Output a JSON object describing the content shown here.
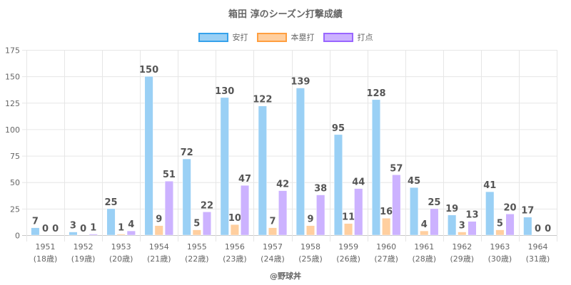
{
  "chart_data": {
    "type": "bar",
    "title": "箱田 淳のシーズン打撃成績",
    "xlabel": "",
    "ylabel": "",
    "ylim": [
      0,
      175
    ],
    "yticks": [
      0,
      25,
      50,
      75,
      100,
      125,
      150,
      175
    ],
    "grid": true,
    "legend_position": "top",
    "categories": [
      "1951",
      "1952",
      "1953",
      "1954",
      "1955",
      "1956",
      "1957",
      "1958",
      "1959",
      "1960",
      "1961",
      "1962",
      "1963",
      "1964"
    ],
    "category_sublabels": [
      "(18歳)",
      "(19歳)",
      "(20歳)",
      "(21歳)",
      "(22歳)",
      "(23歳)",
      "(24歳)",
      "(25歳)",
      "(26歳)",
      "(27歳)",
      "(28歳)",
      "(29歳)",
      "(30歳)",
      "(31歳)"
    ],
    "series": [
      {
        "name": "安打",
        "color": "#9ad0f5",
        "border": "#36a2eb",
        "values": [
          7,
          3,
          25,
          150,
          72,
          130,
          122,
          139,
          95,
          128,
          45,
          19,
          41,
          17
        ]
      },
      {
        "name": "本塁打",
        "color": "#ffcf9f",
        "border": "#ff9f40",
        "values": [
          0,
          0,
          1,
          9,
          5,
          10,
          7,
          9,
          11,
          16,
          4,
          3,
          5,
          0
        ]
      },
      {
        "name": "打点",
        "color": "#ccb2ff",
        "border": "#9966ff",
        "values": [
          0,
          1,
          4,
          51,
          22,
          47,
          42,
          38,
          44,
          57,
          25,
          13,
          20,
          0
        ]
      }
    ]
  },
  "credit": "@野球丼"
}
